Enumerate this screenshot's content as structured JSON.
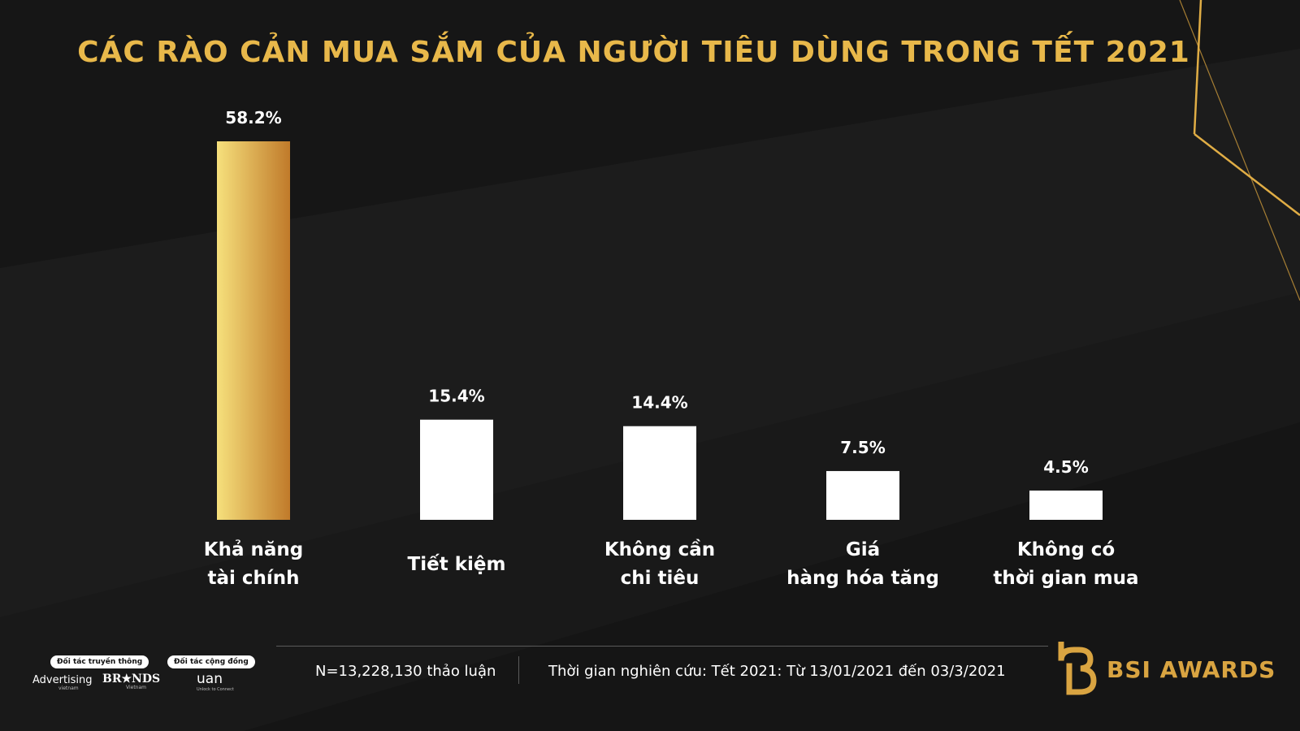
{
  "chart_data": {
    "type": "bar",
    "title": "CÁC RÀO CẢN MUA SẮM CỦA NGƯỜI TIÊU DÙNG TRONG TẾT 2021",
    "categories": [
      [
        "Khả năng",
        "tài chính"
      ],
      [
        "Tiết kiệm"
      ],
      [
        "Không cần",
        "chi tiêu"
      ],
      [
        "Giá",
        "hàng hóa tăng"
      ],
      [
        "Không có",
        "thời gian mua"
      ]
    ],
    "values": [
      58.2,
      15.4,
      14.4,
      7.5,
      4.5
    ],
    "value_labels": [
      "58.2%",
      "15.4%",
      "14.4%",
      "7.5%",
      "4.5%"
    ],
    "unit": "%",
    "ylim": [
      0,
      58.2
    ],
    "grid": false,
    "highlight_index": 0,
    "colors": {
      "highlight_start": "#f6e07c",
      "highlight_end": "#c07a2a",
      "bar": "#ffffff",
      "title": "#e8b84a"
    }
  },
  "footer": {
    "sample": "N=13,228,130 thảo luận",
    "period": "Thời gian nghiên cứu: Tết 2021: Từ 13/01/2021 đến 03/3/2021"
  },
  "partners": {
    "media_label": "Đối tác truyền thông",
    "community_label": "Đối tác cộng đồng",
    "advertising": "Advertising",
    "advertising_sub": "vietnam",
    "brands": "BR★NDS",
    "brands_sub": "Vietnam",
    "uan": "uan",
    "uan_sub": "Unlock to Connect"
  },
  "brand": {
    "name": "BSI AWARDS",
    "icon": "bsi-logo-icon"
  }
}
